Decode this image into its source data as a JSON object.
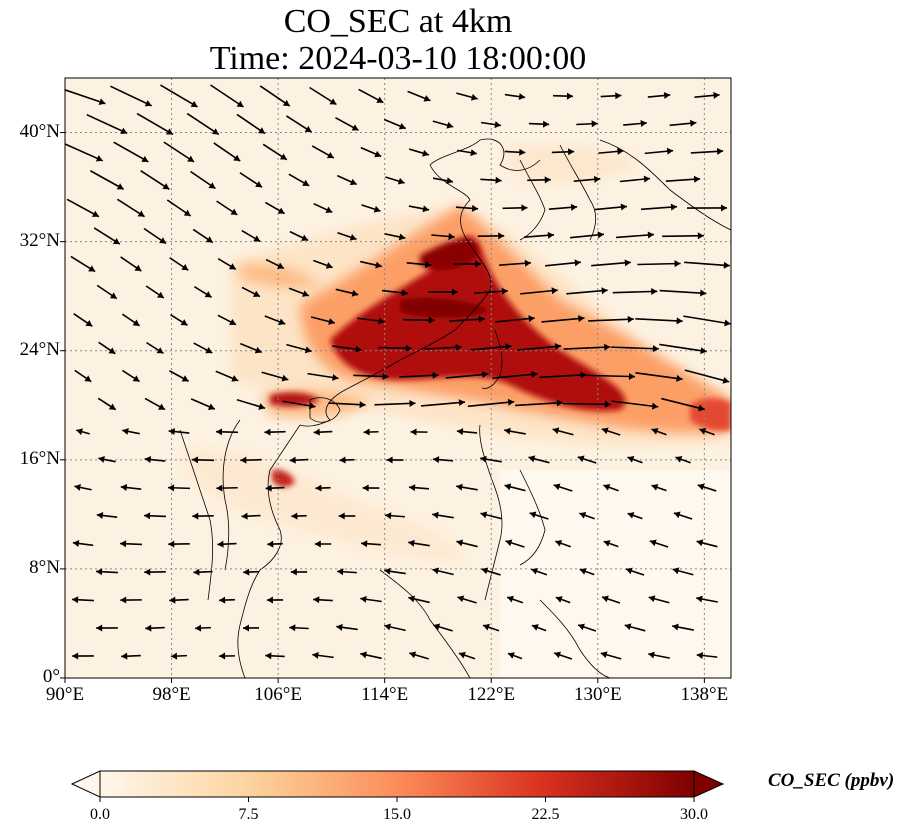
{
  "title_line1": "CO_SEC at 4km",
  "title_line2": "Time: 2024-03-10 18:00:00",
  "map": {
    "lon_range": [
      90,
      140
    ],
    "lat_range": [
      0,
      44
    ],
    "x_ticks": [
      {
        "value": 90,
        "label": "90°E"
      },
      {
        "value": 98,
        "label": "98°E"
      },
      {
        "value": 106,
        "label": "106°E"
      },
      {
        "value": 114,
        "label": "114°E"
      },
      {
        "value": 122,
        "label": "122°E"
      },
      {
        "value": 130,
        "label": "130°E"
      },
      {
        "value": 138,
        "label": "138°E"
      }
    ],
    "y_ticks": [
      {
        "value": 0,
        "label": "0°"
      },
      {
        "value": 8,
        "label": "8°N"
      },
      {
        "value": 16,
        "label": "16°N"
      },
      {
        "value": 24,
        "label": "24°N"
      },
      {
        "value": 32,
        "label": "32°N"
      },
      {
        "value": 40,
        "label": "40°N"
      }
    ],
    "gridlines": true,
    "wind_vectors_shown": true,
    "plume_regions": [
      {
        "name": "east-china-plume",
        "lon": 117,
        "lat": 29,
        "intensity": "high"
      },
      {
        "name": "taiwan-pacific-outflow",
        "lon": 128,
        "lat": 21,
        "intensity": "high"
      },
      {
        "name": "south-china-plume",
        "lon": 110,
        "lat": 21.5,
        "intensity": "high"
      },
      {
        "name": "indochina-fire-spot",
        "lon": 107,
        "lat": 14.8,
        "intensity": "high"
      },
      {
        "name": "west-pacific-edge",
        "lon": 139,
        "lat": 19.5,
        "intensity": "high"
      }
    ]
  },
  "colorbar": {
    "label": "CO_SEC (ppbv)",
    "min": 0.0,
    "max": 30.0,
    "colormap": "OrRd",
    "extend": "both",
    "ticks": [
      {
        "value": 0.0,
        "label": "0.0"
      },
      {
        "value": 7.5,
        "label": "7.5"
      },
      {
        "value": 15.0,
        "label": "15.0"
      },
      {
        "value": 22.5,
        "label": "22.5"
      },
      {
        "value": 30.0,
        "label": "30.0"
      }
    ],
    "colors": [
      "#fff7ec",
      "#fdd49e",
      "#fc8d59",
      "#d7301f",
      "#7f0000"
    ]
  }
}
